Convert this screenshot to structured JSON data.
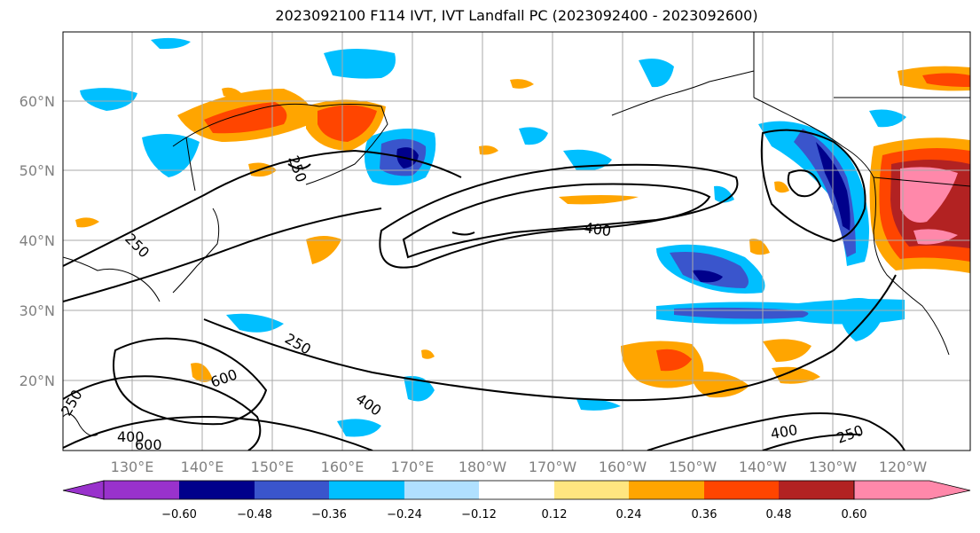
{
  "title": "2023092100 F114 IVT, IVT Landfall PC (2023092400 - 2023092600)",
  "map": {
    "lat_labels": [
      "20°N",
      "30°N",
      "40°N",
      "50°N",
      "60°N"
    ],
    "lon_labels": [
      "130°E",
      "140°E",
      "150°E",
      "160°E",
      "170°E",
      "180°W",
      "170°W",
      "160°W",
      "150°W",
      "140°W",
      "130°W",
      "120°W"
    ],
    "contour_labels": [
      {
        "text": "400",
        "name": "contour-label-400-central"
      },
      {
        "text": "250",
        "name": "contour-label-250-japan"
      },
      {
        "text": "250",
        "name": "contour-label-250-kamchatka"
      },
      {
        "text": "250",
        "name": "contour-label-250-west-pacific"
      },
      {
        "text": "400",
        "name": "contour-label-400-subtropical"
      },
      {
        "text": "600",
        "name": "contour-label-600-west"
      },
      {
        "text": "400",
        "name": "contour-label-400-southwest"
      },
      {
        "text": "600",
        "name": "contour-label-600-southwest"
      },
      {
        "text": "250",
        "name": "contour-label-250-far-west"
      },
      {
        "text": "400",
        "name": "contour-label-400-east"
      },
      {
        "text": "250",
        "name": "contour-label-250-east"
      }
    ]
  },
  "colorbar": {
    "ticks": [
      "−0.60",
      "−0.48",
      "−0.36",
      "−0.24",
      "−0.12",
      "0.12",
      "0.24",
      "0.36",
      "0.48",
      "0.60"
    ],
    "colors": [
      "#9932cc",
      "#00008b",
      "#3a55cc",
      "#00bfff",
      "#b0e0ff",
      "#ffffff",
      "#ffe680",
      "#ffa500",
      "#ff4500",
      "#b22222",
      "#ff88aa"
    ]
  }
}
